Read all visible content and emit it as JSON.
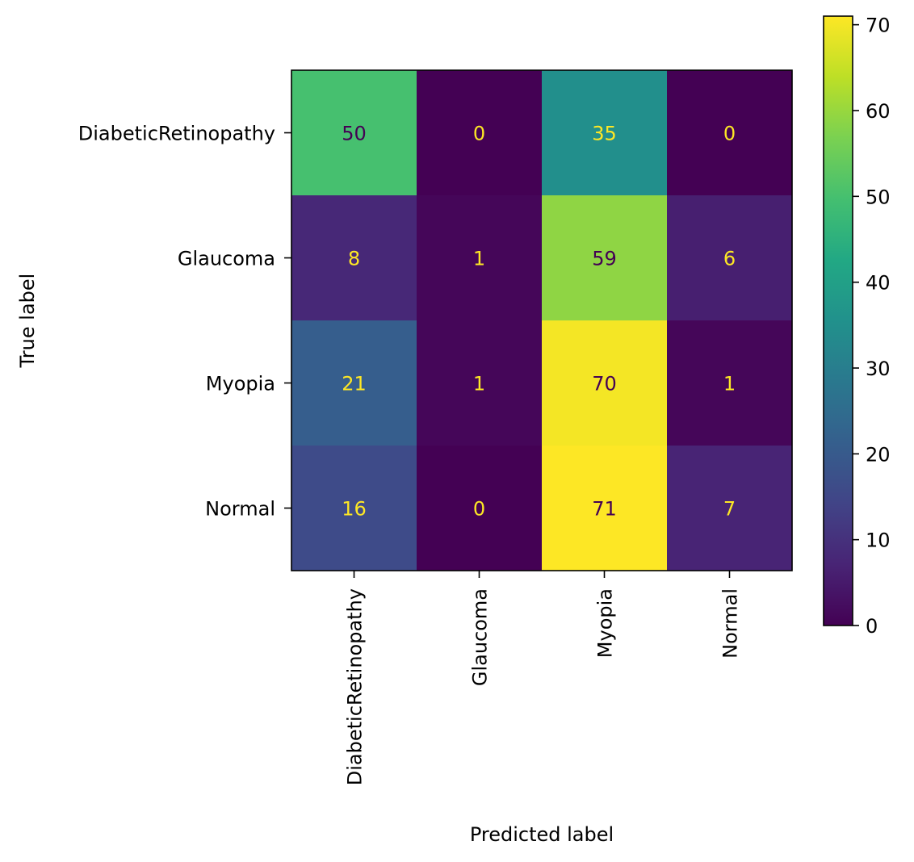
{
  "chart_data": {
    "type": "heatmap",
    "xlabel": "Predicted label",
    "ylabel": "True label",
    "x_categories": [
      "DiabeticRetinopathy",
      "Glaucoma",
      "Myopia",
      "Normal"
    ],
    "y_categories": [
      "DiabeticRetinopathy",
      "Glaucoma",
      "Myopia",
      "Normal"
    ],
    "values": [
      [
        50,
        0,
        35,
        0
      ],
      [
        8,
        1,
        59,
        6
      ],
      [
        21,
        1,
        70,
        1
      ],
      [
        16,
        0,
        71,
        7
      ]
    ],
    "colormap": "viridis",
    "colorbar": {
      "range": [
        0,
        71
      ],
      "ticks": [
        0,
        10,
        20,
        30,
        40,
        50,
        60,
        70
      ]
    },
    "text_colors": {
      "dark": "#440154",
      "light": "#fde725"
    }
  }
}
